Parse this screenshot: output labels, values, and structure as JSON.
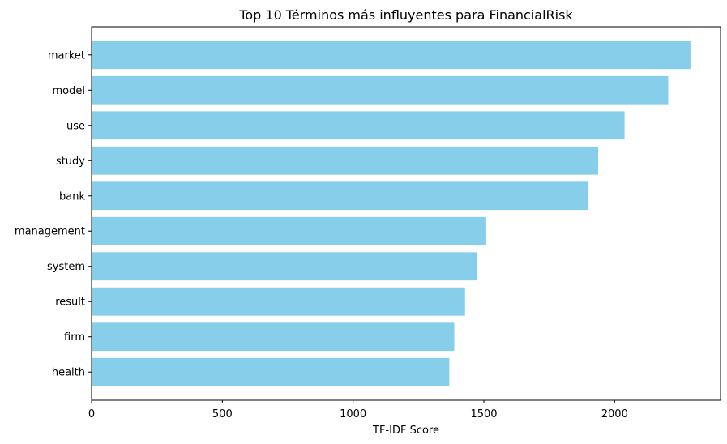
{
  "chart_data": {
    "type": "bar",
    "orientation": "horizontal",
    "title": "Top 10 Términos más influyentes para FinancialRisk",
    "xlabel": "TF-IDF Score",
    "ylabel": "",
    "categories": [
      "market",
      "model",
      "use",
      "study",
      "bank",
      "management",
      "system",
      "result",
      "firm",
      "health"
    ],
    "values": [
      2290,
      2205,
      2038,
      1937,
      1900,
      1509,
      1475,
      1428,
      1387,
      1368
    ],
    "xlim": [
      0,
      2405
    ],
    "xticks": [
      0,
      500,
      1000,
      1500,
      2000
    ],
    "xtick_labels": [
      "0",
      "500",
      "1000",
      "1500",
      "2000"
    ],
    "bar_color": "#87ceeb",
    "grid": false,
    "legend": "none"
  }
}
